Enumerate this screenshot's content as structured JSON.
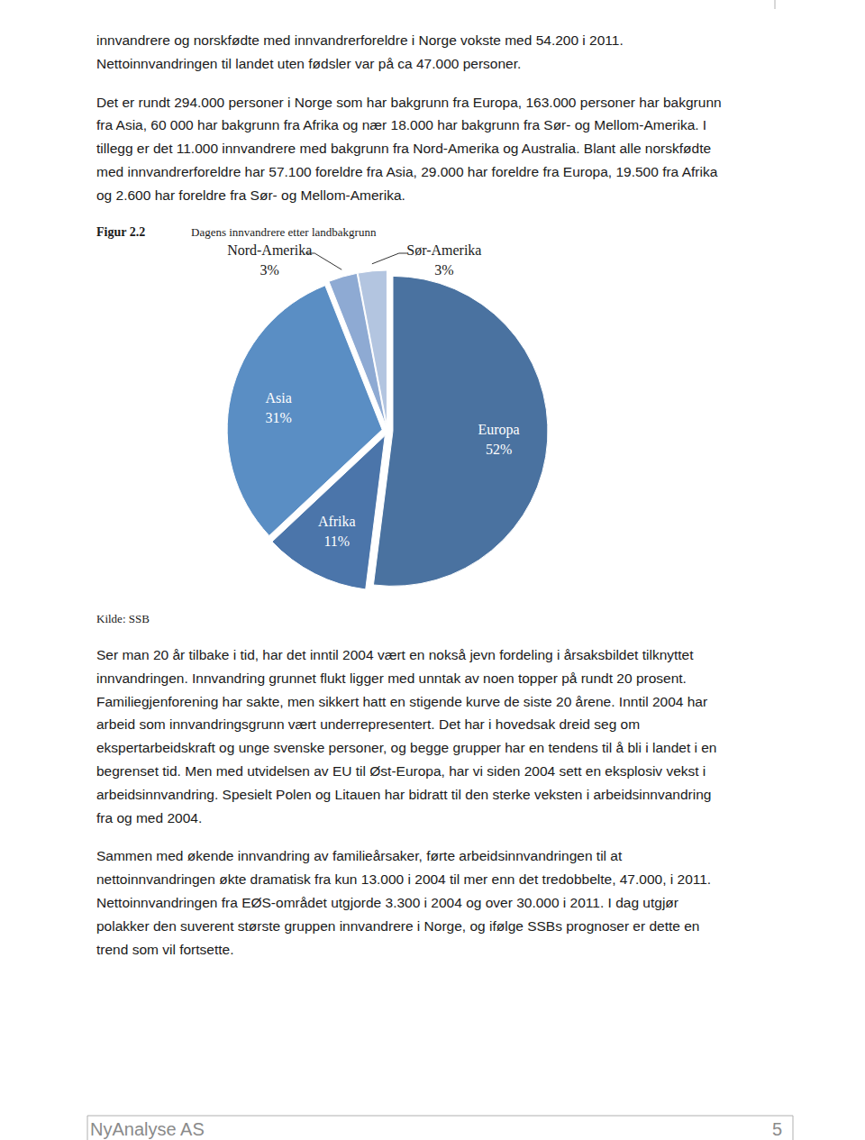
{
  "chart_data": {
    "type": "pie",
    "title": "Dagens innvandrere etter landbakgrunn",
    "categories": [
      "Europa",
      "Afrika",
      "Asia",
      "Nord-Amerika",
      "Sør-Amerika"
    ],
    "values": [
      52,
      11,
      31,
      3,
      3
    ],
    "value_labels": [
      "52%",
      "11%",
      "31%",
      "3%",
      "3%"
    ],
    "colors": [
      "#4a72a0",
      "#4b75aa",
      "#5a8ec4",
      "#8eaad3",
      "#b3c5e0"
    ],
    "data_labels": true
  },
  "document": {
    "paragraphs_top": [
      {
        "lines": [
          "innvandrere og norskfødte med innvandrerforeldre i Norge vokste med 54.200 i 2011.",
          "Nettoinnvandringen til landet uten fødsler var på ca 47.000 personer."
        ]
      },
      {
        "lines": [
          "Det er rundt 294.000 personer i Norge som har bakgrunn fra Europa, 163.000 personer har bakgrunn",
          "fra Asia, 60 000 har bakgrunn fra Afrika og nær 18.000 har bakgrunn fra Sør- og Mellom-Amerika. I",
          "tillegg er det 11.000 innvandrere med bakgrunn fra Nord-Amerika og Australia. Blant alle norskfødte",
          "med innvandrerforeldre har 57.100 foreldre fra Asia, 29.000 har foreldre fra Europa, 19.500 fra Afrika",
          "og 2.600 har foreldre fra Sør- og Mellom-Amerika."
        ]
      }
    ],
    "figure_label": "Figur 2.2",
    "source": "Kilde: SSB",
    "paragraphs_bottom": [
      {
        "lines": [
          "Ser man 20 år tilbake i tid, har det inntil 2004 vært en nokså jevn fordeling i årsaksbildet tilknyttet",
          "innvandringen. Innvandring grunnet flukt ligger med unntak av noen topper på rundt 20 prosent.",
          "Familiegjenforening har sakte, men sikkert hatt en stigende kurve de siste 20 årene. Inntil 2004 har",
          "arbeid som innvandringsgrunn vært underrepresentert. Det har i hovedsak dreid seg om",
          "ekspertarbeidskraft og unge svenske personer, og begge grupper har en tendens til å bli i landet i en",
          "begrenset tid. Men med utvidelsen av EU til Øst-Europa, har vi siden 2004 sett en eksplosiv vekst i",
          "arbeidsinnvandring. Spesielt Polen og Litauen har bidratt til den sterke veksten i arbeidsinnvandring",
          "fra og med 2004."
        ]
      },
      {
        "lines": [
          "Sammen med økende innvandring av familieårsaker, førte arbeidsinnvandringen til at",
          "nettoinnvandringen økte dramatisk fra kun 13.000 i 2004 til mer enn det tredobbelte, 47.000, i 2011.",
          "Nettoinnvandringen fra EØS-området utgjorde 3.300 i 2004 og over 30.000 i 2011. I dag utgjør",
          "polakker den suverent største gruppen innvandrere i Norge, og ifølge SSBs prognoser er dette en",
          "trend som vil fortsette."
        ]
      }
    ],
    "footer": {
      "company": "NyAnalyse AS",
      "page": "5"
    }
  }
}
